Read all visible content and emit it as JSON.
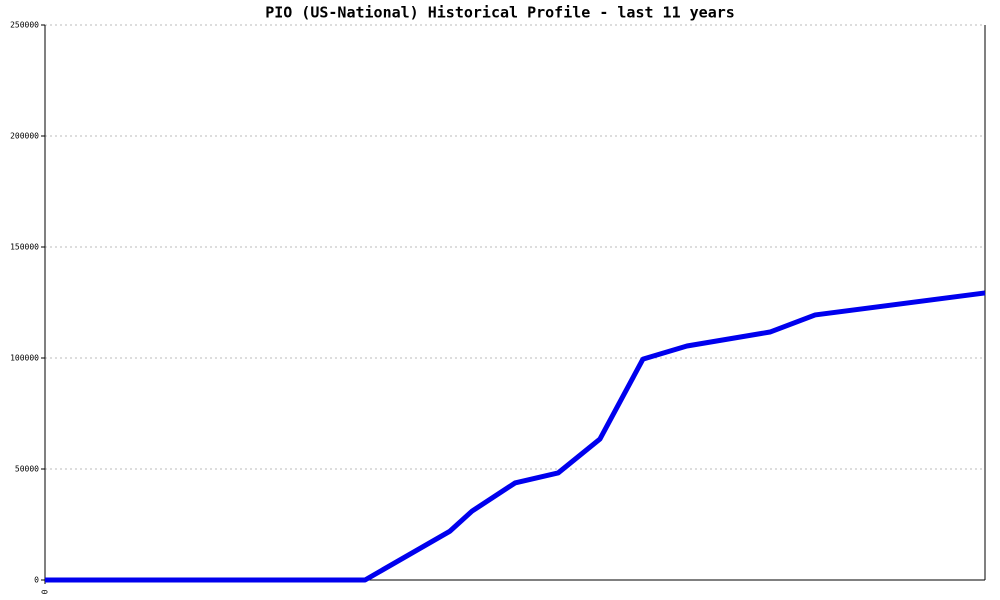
{
  "chart_data": {
    "type": "line",
    "title": "PIO (US-National) Historical Profile - last 11 years",
    "x": [
      0,
      1368,
      1731,
      1825,
      2009,
      2193,
      2372,
      2556,
      2744,
      3099,
      3292,
      4018
    ],
    "series": [
      {
        "color": "#0000ee",
        "values": [
          0,
          0,
          22000,
          31000,
          43700,
          48200,
          63500,
          99500,
          105400,
          111700,
          119400,
          129300
        ]
      }
    ],
    "xlim": [
      0,
      4018
    ],
    "xticks": [
      0
    ],
    "ylim": [
      0,
      250000
    ],
    "yticks": [
      0,
      50000,
      100000,
      150000,
      200000,
      250000
    ],
    "grid": true
  }
}
